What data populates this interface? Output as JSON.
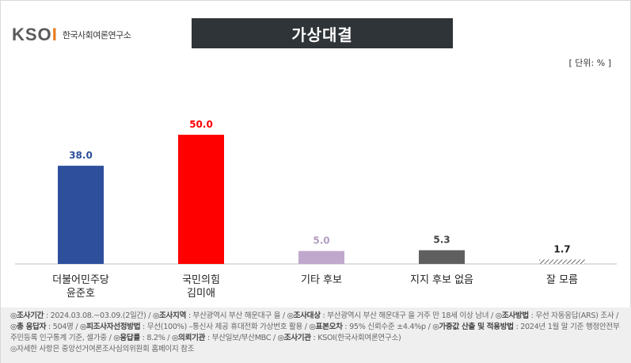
{
  "header": {
    "logo_mark_left": "KSO",
    "logo_mark_accent": "I",
    "logo_text": "한국사회여론연구소",
    "title": "가상대결",
    "unit": "[ 단위: % ]"
  },
  "chart_data": {
    "type": "bar",
    "categories": [
      [
        "더불어민주당",
        "윤준호"
      ],
      [
        "국민의힘",
        "김미애"
      ],
      [
        "기타 후보"
      ],
      [
        "지지 후보 없음"
      ],
      [
        "잘 모름"
      ]
    ],
    "values": [
      38.0,
      50.0,
      5.0,
      5.3,
      1.7
    ],
    "value_labels": [
      "38.0",
      "50.0",
      "5.0",
      "5.3",
      "1.7"
    ],
    "bar_colors": [
      "#2d4f9c",
      "#ff0000",
      "#c0a8cc",
      "#5f5f5f",
      "hatched"
    ],
    "label_colors": [
      "#2d4f9c",
      "#ff0000",
      "#b39cc0",
      "#444444",
      "#222222"
    ],
    "ylim": [
      0,
      50
    ]
  },
  "footer": {
    "items": [
      {
        "key": "◎조사기간",
        "value": "2024.03.08.~03.09.(2일간)"
      },
      {
        "key": "◎조사지역",
        "value": "부산광역시 부산 해운대구 을"
      },
      {
        "key": "◎조사대상",
        "value": "부산광역시 부산 해운대구 을 거주 만 18세 이상 남녀"
      },
      {
        "key": "◎조사방법",
        "value": "무선 자동응답(ARS) 조사"
      },
      {
        "key": "◎총 응답자",
        "value": "504명"
      },
      {
        "key": "◎피조사자선정방법",
        "value": "무선(100%) –통신사 제공 휴대전화 가상번호 활용"
      },
      {
        "key": "◎표본오차",
        "value": "95% 신뢰수준 ±4.4%p"
      },
      {
        "key": "◎가중값 산출 및 적용방법",
        "value": "2024년 1월 말 기준 행정안전부 주민등록 인구통계 기준, 셀가중"
      },
      {
        "key": "◎응답률",
        "value": "8.2%"
      },
      {
        "key": "◎의뢰기관",
        "value": "부산일보/부산MBC"
      },
      {
        "key": "◎조사기관",
        "value": "KSOI(한국사회여론연구소)"
      }
    ],
    "note": "◎자세한 사항은 중앙선거여론조사심의위원회 홈페이지 참조"
  }
}
